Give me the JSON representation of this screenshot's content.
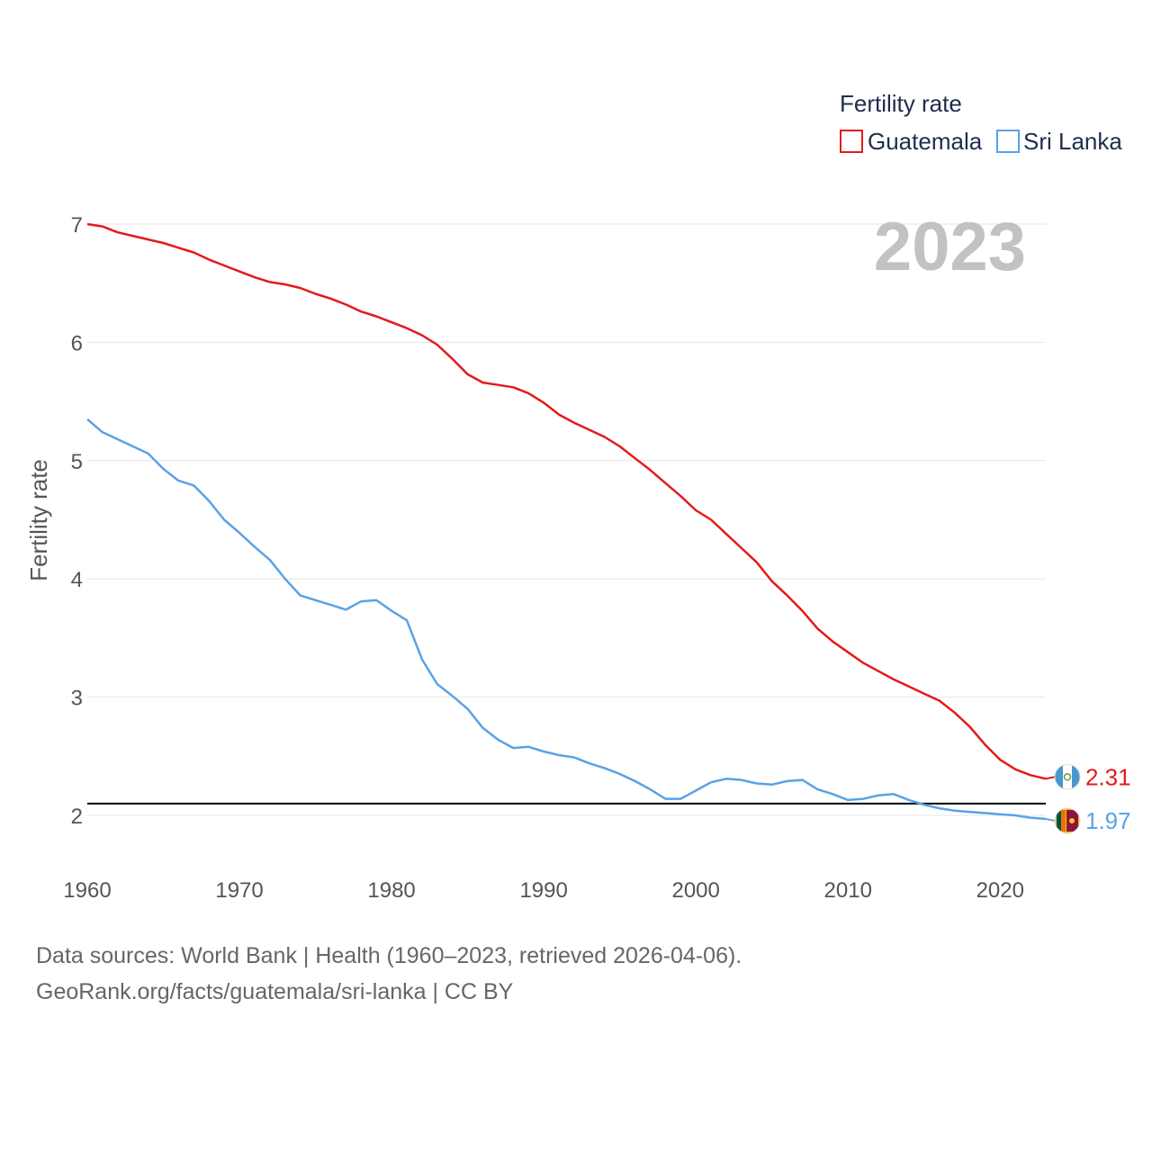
{
  "chart_data": {
    "type": "line",
    "title": "Fertility rate",
    "ylabel": "Fertility rate",
    "xlabel": "",
    "year_label": "2023",
    "xlim": [
      1960,
      2023
    ],
    "ylim": [
      1.5,
      7
    ],
    "x_ticks": [
      1960,
      1970,
      1980,
      1990,
      2000,
      2010,
      2020
    ],
    "y_ticks": [
      2,
      3,
      4,
      5,
      6,
      7
    ],
    "reference_line": 2.1,
    "x": [
      1960,
      1961,
      1962,
      1963,
      1964,
      1965,
      1966,
      1967,
      1968,
      1969,
      1970,
      1971,
      1972,
      1973,
      1974,
      1975,
      1976,
      1977,
      1978,
      1979,
      1980,
      1981,
      1982,
      1983,
      1984,
      1985,
      1986,
      1987,
      1988,
      1989,
      1990,
      1991,
      1992,
      1993,
      1994,
      1995,
      1996,
      1997,
      1998,
      1999,
      2000,
      2001,
      2002,
      2003,
      2004,
      2005,
      2006,
      2007,
      2008,
      2009,
      2010,
      2011,
      2012,
      2013,
      2014,
      2015,
      2016,
      2017,
      2018,
      2019,
      2020,
      2021,
      2022,
      2023
    ],
    "series": [
      {
        "name": "Guatemala",
        "color": "#e41a1c",
        "end_label": "2.31",
        "values": [
          7.0,
          6.98,
          6.93,
          6.9,
          6.87,
          6.84,
          6.8,
          6.76,
          6.7,
          6.65,
          6.6,
          6.55,
          6.51,
          6.49,
          6.46,
          6.41,
          6.37,
          6.32,
          6.26,
          6.22,
          6.17,
          6.12,
          6.06,
          5.98,
          5.86,
          5.73,
          5.66,
          5.64,
          5.62,
          5.57,
          5.49,
          5.39,
          5.32,
          5.26,
          5.2,
          5.12,
          5.02,
          4.92,
          4.81,
          4.7,
          4.58,
          4.5,
          4.38,
          4.26,
          4.14,
          3.98,
          3.86,
          3.73,
          3.58,
          3.47,
          3.38,
          3.29,
          3.22,
          3.15,
          3.09,
          3.03,
          2.97,
          2.87,
          2.75,
          2.6,
          2.47,
          2.39,
          2.34,
          2.31
        ]
      },
      {
        "name": "Sri Lanka",
        "color": "#5aa2e6",
        "end_label": "1.97",
        "values": [
          5.35,
          5.24,
          5.18,
          5.12,
          5.06,
          4.93,
          4.83,
          4.79,
          4.66,
          4.5,
          4.39,
          4.27,
          4.16,
          4.0,
          3.86,
          3.82,
          3.78,
          3.74,
          3.81,
          3.82,
          3.73,
          3.65,
          3.32,
          3.11,
          3.01,
          2.9,
          2.74,
          2.64,
          2.57,
          2.58,
          2.54,
          2.51,
          2.49,
          2.44,
          2.4,
          2.35,
          2.29,
          2.22,
          2.14,
          2.14,
          2.21,
          2.28,
          2.31,
          2.3,
          2.27,
          2.26,
          2.29,
          2.3,
          2.22,
          2.18,
          2.13,
          2.14,
          2.17,
          2.18,
          2.13,
          2.09,
          2.06,
          2.04,
          2.03,
          2.02,
          2.01,
          2.0,
          1.98,
          1.97
        ]
      }
    ]
  },
  "legend": {
    "title": "Fertility rate",
    "items": [
      "Guatemala",
      "Sri Lanka"
    ]
  },
  "source": {
    "line1": "Data sources: World Bank | Health (1960–2023, retrieved 2026-04-06).",
    "line2": "GeoRank.org/facts/guatemala/sri-lanka | CC BY"
  }
}
